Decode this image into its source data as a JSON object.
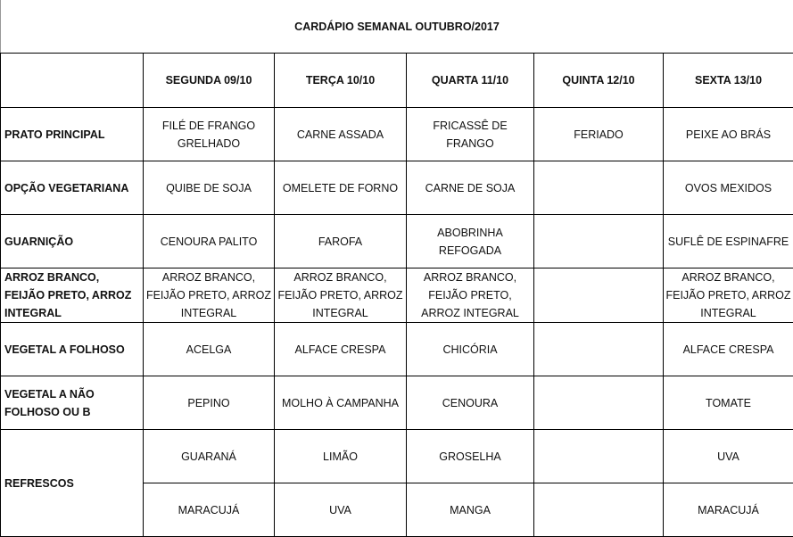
{
  "title": "CARDÁPIO SEMANAL OUTUBRO/2017",
  "days": [
    "SEGUNDA   09/10",
    "TERÇA 10/10",
    "QUARTA 11/10",
    "QUINTA 12/10",
    "SEXTA 13/10"
  ],
  "rows": [
    {
      "label": "PRATO PRINCIPAL",
      "cells": [
        "FILÉ DE FRANGO GRELHADO",
        "CARNE ASSADA",
        "FRICASSÊ DE FRANGO",
        "FERIADO",
        "PEIXE AO BRÁS"
      ]
    },
    {
      "label": "OPÇÃO VEGETARIANA",
      "cells": [
        "QUIBE DE SOJA",
        "OMELETE DE FORNO",
        "CARNE DE SOJA",
        "",
        "OVOS MEXIDOS"
      ]
    },
    {
      "label": "GUARNIÇÃO",
      "cells": [
        "CENOURA PALITO",
        "FAROFA",
        "ABOBRINHA REFOGADA",
        "",
        "SUFLÊ DE ESPINAFRE"
      ]
    },
    {
      "label": "ARROZ BRANCO, FEIJÃO PRETO, ARROZ INTEGRAL",
      "cells": [
        "ARROZ BRANCO, FEIJÃO PRETO, ARROZ INTEGRAL",
        "ARROZ BRANCO, FEIJÃO PRETO, ARROZ INTEGRAL",
        "ARROZ BRANCO, FEIJÃO PRETO, ARROZ INTEGRAL",
        "",
        "ARROZ BRANCO, FEIJÃO PRETO, ARROZ INTEGRAL"
      ]
    },
    {
      "label": "VEGETAL A FOLHOSO",
      "cells": [
        "ACELGA",
        "ALFACE CRESPA",
        "CHICÓRIA",
        "",
        "ALFACE CRESPA"
      ]
    },
    {
      "label": "VEGETAL A NÃO FOLHOSO OU B",
      "cells": [
        "PEPINO",
        "MOLHO À CAMPANHA",
        "CENOURA",
        "",
        "TOMATE"
      ]
    }
  ],
  "refrescos": {
    "label": "REFRESCOS",
    "rows": [
      [
        "GUARANÁ",
        "LIMÃO",
        "GROSELHA",
        "",
        "UVA"
      ],
      [
        "MARACUJÁ",
        "UVA",
        "MANGA",
        "",
        "MARACUJÁ"
      ]
    ]
  }
}
